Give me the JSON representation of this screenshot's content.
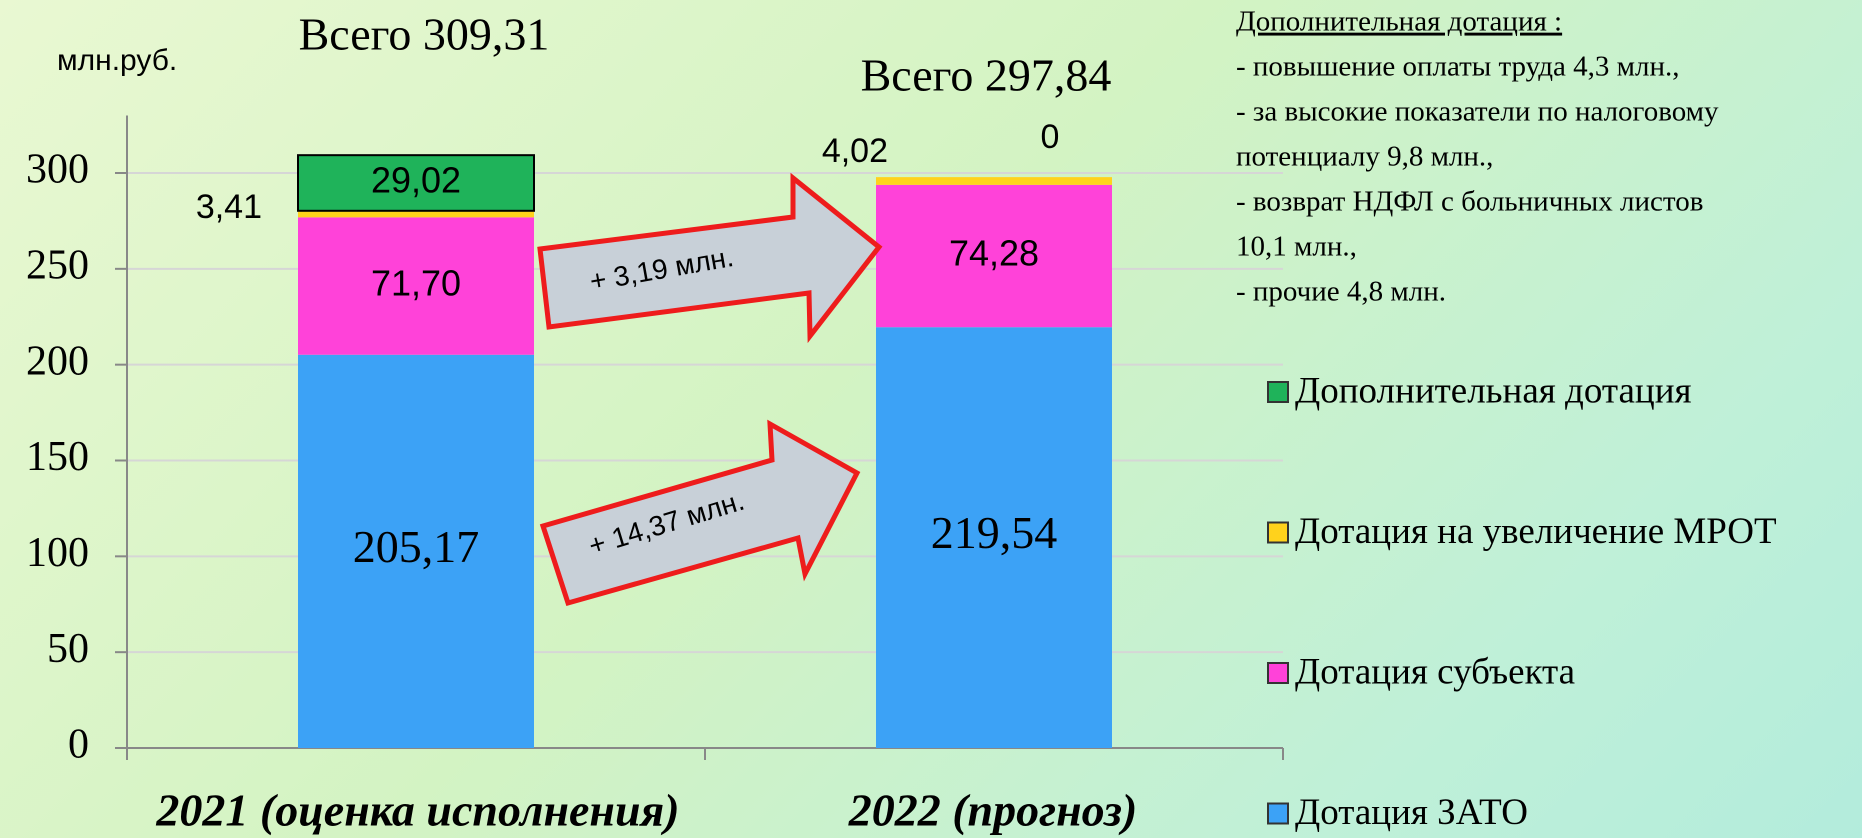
{
  "chart_data": {
    "type": "stacked_bar",
    "unit_label": "млн.руб.",
    "categories": [
      "2021 (оценка исполнения)",
      "2022 (прогноз)"
    ],
    "totals": [
      "Всего 309,31",
      "Всего 297,84"
    ],
    "series": [
      {
        "name": "Дотация ЗАТО",
        "color": "#3ca2f6",
        "values": [
          205.17,
          219.54
        ],
        "value_labels": [
          "205,17",
          "219,54"
        ]
      },
      {
        "name": "Дотация субъекта",
        "color": "#ff42d9",
        "values": [
          71.7,
          74.28
        ],
        "value_labels": [
          "71,70",
          "74,28"
        ]
      },
      {
        "name": "Дотация на увеличение МРОТ",
        "color": "#ffd21c",
        "values": [
          3.41,
          4.02
        ],
        "value_labels": [
          "3,41",
          "4,02"
        ]
      },
      {
        "name": "Дополнительная дотация",
        "color": "#1fb35a",
        "values": [
          29.02,
          0
        ],
        "value_labels": [
          "29,02",
          "0"
        ]
      }
    ],
    "arrows": [
      "+ 3,19 млн.",
      "+ 14,37 млн."
    ],
    "note": {
      "title": "Дополнительная дотация :",
      "lines": [
        " - повышение оплаты труда 4,3 млн.,",
        "- за высокие показатели по налоговому",
        "потенциалу 9,8 млн.,",
        "- возврат НДФЛ с больничных листов",
        "10,1 млн.,",
        "- прочие 4,8 млн."
      ]
    },
    "ylim": [
      0,
      330
    ],
    "yticks": [
      0,
      50,
      100,
      150,
      200,
      250,
      300
    ],
    "grid": true,
    "legend": "right"
  }
}
